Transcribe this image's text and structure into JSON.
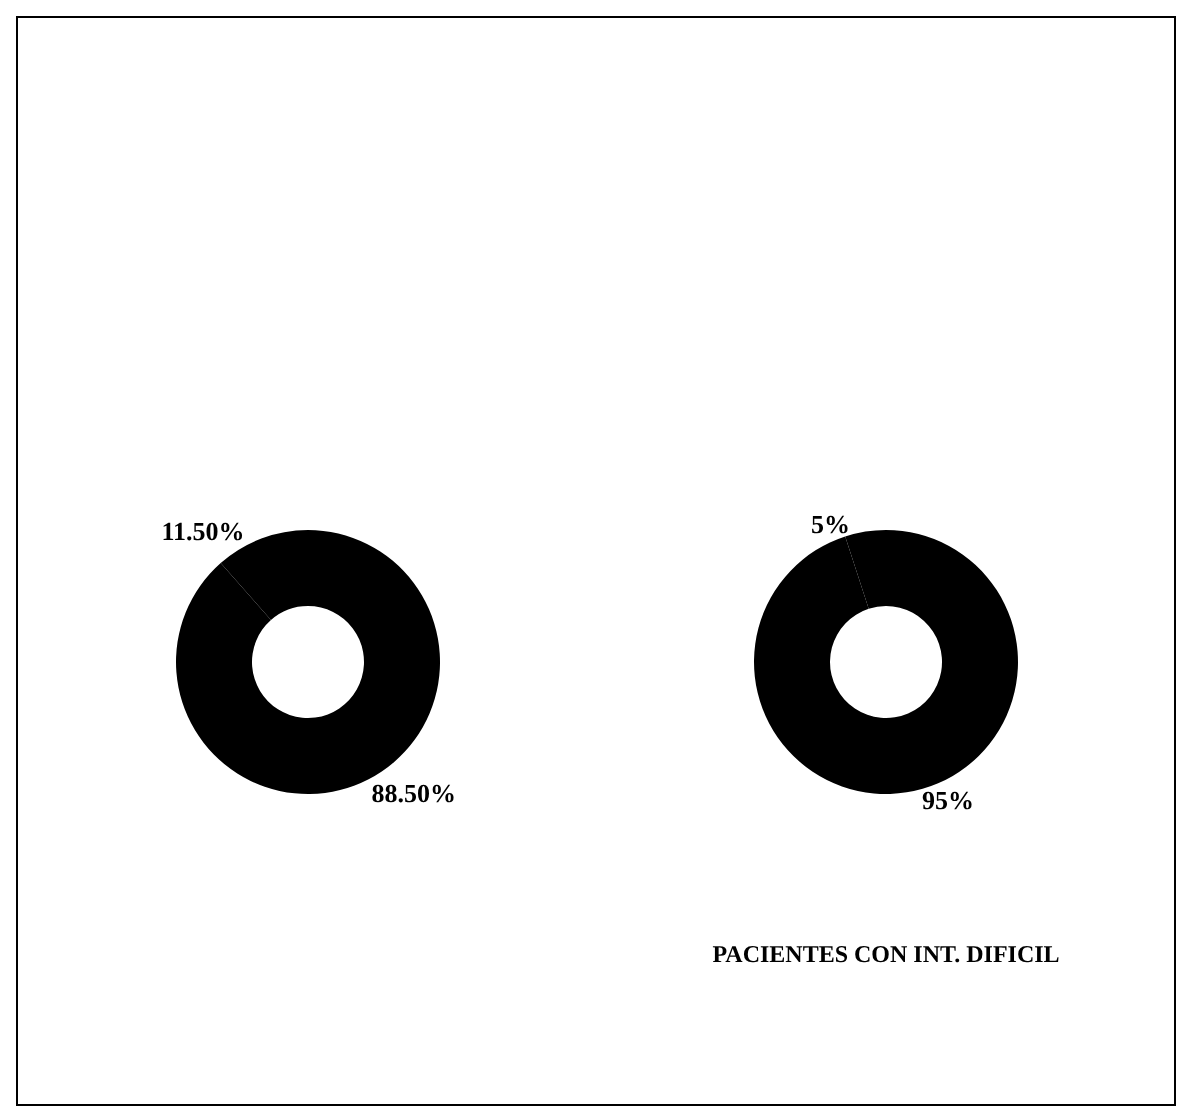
{
  "chart_data": [
    {
      "type": "donut",
      "categories": [
        null,
        null
      ],
      "values": [
        11.5,
        88.5
      ],
      "colors": [
        "#000000",
        "#000000"
      ],
      "value_labels": [
        "11.50%",
        "88.50%"
      ]
    },
    {
      "type": "donut",
      "categories": [
        null,
        null
      ],
      "values": [
        5,
        95
      ],
      "colors": [
        "#000000",
        "#000000"
      ],
      "value_labels": [
        "5%",
        "95%"
      ],
      "annotations": [
        "PACIENTES CON INT. DIFICIL"
      ]
    }
  ]
}
